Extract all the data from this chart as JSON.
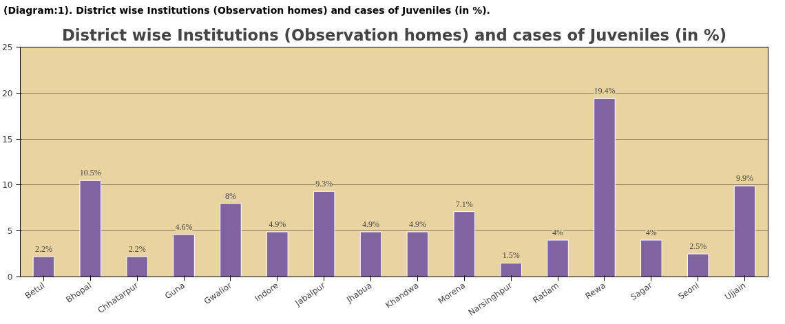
{
  "chart_data": {
    "type": "bar",
    "title": "District wise Institutions (Observation homes) and cases of Juveniles (in %)",
    "annotations": [
      "(Diagram:1). District wise Institutions (Observation homes) and cases of Juveniles (in %)."
    ],
    "categories": [
      "Betul",
      "Bhopal",
      "Chhatarpur",
      "Guna",
      "Gwalior",
      "Indore",
      "Jabalpur",
      "Jhabua",
      "Khandwa",
      "Morena",
      "Narsinghpur",
      "Ratlam",
      "Rewa",
      "Sagar",
      "Seoni",
      "Ujjain"
    ],
    "values": [
      2.2,
      10.5,
      2.2,
      4.6,
      8,
      4.9,
      9.3,
      4.9,
      4.9,
      7.1,
      1.5,
      4,
      19.4,
      4,
      2.5,
      9.9
    ],
    "value_labels": [
      "2.2%",
      "10.5%",
      "2.2%",
      "4.6%",
      "8%",
      "4.9%",
      "9.3%",
      "4.9%",
      "4.9%",
      "7.1%",
      "1.5%",
      "4%",
      "19.4%",
      "4%",
      "2.5%",
      "9.9%"
    ],
    "color": "#8064a2",
    "ylim": [
      0,
      25
    ],
    "yticks": [
      0,
      5,
      10,
      15,
      20,
      25
    ],
    "grid": "y"
  }
}
